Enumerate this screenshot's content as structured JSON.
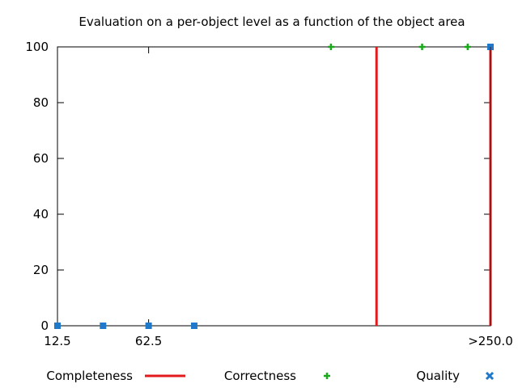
{
  "chart_data": {
    "type": "scatter",
    "title": "Evaluation on a per-object level as a function of the object area",
    "xlabel": "",
    "ylabel": "",
    "xlim": [
      12.5,
      250
    ],
    "ylim": [
      0,
      100
    ],
    "x_ticks": [
      {
        "value": 12.5,
        "label": "12.5"
      },
      {
        "value": 62.5,
        "label": "62.5"
      },
      {
        "value": 250,
        "label": ">250.0"
      }
    ],
    "y_ticks": [
      {
        "value": 0,
        "label": "0"
      },
      {
        "value": 20,
        "label": "20"
      },
      {
        "value": 40,
        "label": "40"
      },
      {
        "value": 60,
        "label": "60"
      },
      {
        "value": 80,
        "label": "80"
      },
      {
        "value": 100,
        "label": "100"
      }
    ],
    "grid": false,
    "legend_position": "bottom",
    "series": [
      {
        "name": "Completeness",
        "style": "impulses",
        "color": "#e31a1c",
        "points": [
          {
            "x": 12.5,
            "y": 0
          },
          {
            "x": 37.5,
            "y": 0
          },
          {
            "x": 62.5,
            "y": 0
          },
          {
            "x": 87.5,
            "y": 0
          },
          {
            "x": 187.5,
            "y": 100
          },
          {
            "x": 250,
            "y": 100
          }
        ]
      },
      {
        "name": "Correctness",
        "style": "plus",
        "color": "#1ca81c",
        "points": [
          {
            "x": 162.5,
            "y": 100
          },
          {
            "x": 212.5,
            "y": 100
          },
          {
            "x": 237.5,
            "y": 100
          },
          {
            "x": 250,
            "y": 100
          }
        ]
      },
      {
        "name": "Quality",
        "style": "square",
        "color": "#1f78c8",
        "points": [
          {
            "x": 12.5,
            "y": 0
          },
          {
            "x": 37.5,
            "y": 0
          },
          {
            "x": 62.5,
            "y": 0
          },
          {
            "x": 87.5,
            "y": 0
          },
          {
            "x": 250,
            "y": 100
          }
        ]
      }
    ]
  }
}
